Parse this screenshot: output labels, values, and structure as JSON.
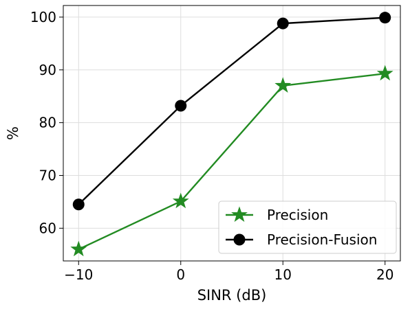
{
  "chart_data": {
    "type": "line",
    "title": "",
    "xlabel": "SINR (dB)",
    "ylabel": "%",
    "x": [
      -10,
      0,
      10,
      20
    ],
    "xlim": [
      -11.5,
      21.5
    ],
    "ylim": [
      53.8,
      102.2
    ],
    "xticks": [
      -10,
      0,
      10,
      20
    ],
    "xtick_labels": [
      "−10",
      "0",
      "10",
      "20"
    ],
    "yticks": [
      60,
      70,
      80,
      90,
      100
    ],
    "ytick_labels": [
      "60",
      "70",
      "80",
      "90",
      "100"
    ],
    "grid": true,
    "legend_position": "lower-right",
    "series": [
      {
        "name": "Precision",
        "values": [
          56.0,
          65.1,
          87.0,
          89.3
        ],
        "color": "#228b22",
        "marker": "star"
      },
      {
        "name": "Precision-Fusion",
        "values": [
          64.5,
          83.2,
          98.8,
          99.9
        ],
        "color": "#000000",
        "marker": "circle"
      }
    ]
  }
}
